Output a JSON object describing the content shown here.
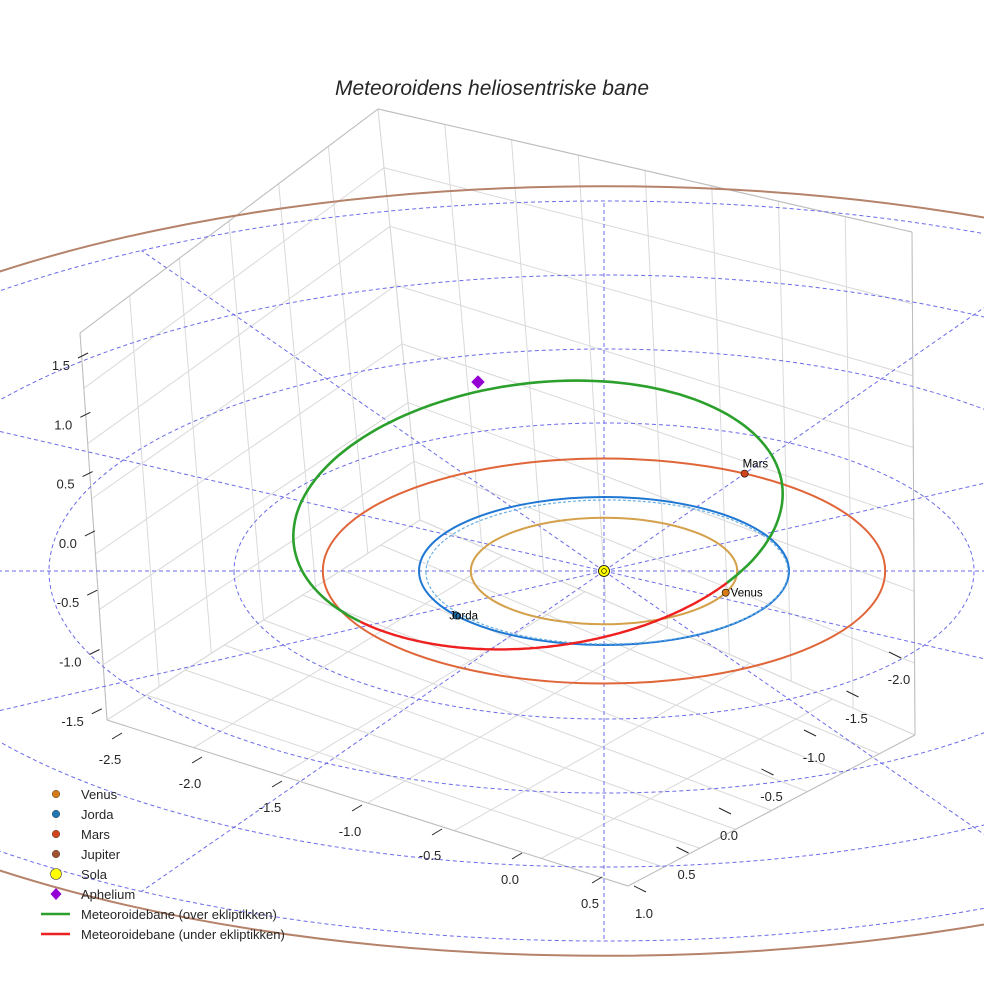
{
  "chart_data": {
    "type": "3d-orbit",
    "title": "Meteoroidens heliosentriske bane",
    "axes": {
      "x_ticks": [
        "-2.5",
        "-2.0",
        "-1.5",
        "-1.0",
        "-0.5",
        "0.0",
        "0.5"
      ],
      "y_ticks": [
        "1.0",
        "0.5",
        "0.0",
        "-0.5",
        "-1.0",
        "-1.5",
        "-2.0"
      ],
      "z_ticks": [
        "1.5",
        "1.0",
        "0.5",
        "0.0",
        "-0.5",
        "-1.0",
        "-1.5"
      ],
      "z_range": [
        -1.5,
        1.5
      ]
    },
    "orbits": [
      {
        "name": "Venus",
        "a_au": 0.72,
        "color": "#d4a04a"
      },
      {
        "name": "Jorda",
        "a_au": 1.0,
        "color": "#1f77d4"
      },
      {
        "name": "Mars",
        "a_au": 1.52,
        "color": "#e0663a"
      },
      {
        "name": "Jupiter",
        "a_au": 5.2,
        "color": "#b5826a"
      }
    ],
    "reference_circles_au": [
      1,
      2,
      3,
      4,
      5
    ],
    "bodies": [
      {
        "name": "Venus",
        "label": "Venus",
        "marker": "circle",
        "color": "#d67a16",
        "r_au": 0.72,
        "angle_deg": -24
      },
      {
        "name": "Jorda",
        "label": "Jorda",
        "marker": "circle",
        "color": "#1f77b4",
        "r_au": 1.0,
        "angle_deg": -143
      },
      {
        "name": "Mars",
        "label": "Mars",
        "marker": "circle",
        "color": "#d1441c",
        "r_au": 1.52,
        "angle_deg": 60
      },
      {
        "name": "Sola",
        "label": "",
        "marker": "circle",
        "color": "#ffff00",
        "r_au": 0,
        "angle_deg": 0
      },
      {
        "name": "Aphelium",
        "label": "",
        "marker": "diamond",
        "color": "#9400d3"
      }
    ],
    "meteoroid": {
      "above": {
        "name": "Meteoroidebane (over ekliptikken)",
        "color": "#2ca02c"
      },
      "below": {
        "name": "Meteoroidebane (under ekliptikken)",
        "color": "#ee2020"
      }
    },
    "legend": [
      {
        "label": "Venus",
        "type": "dot",
        "color": "#d67a16"
      },
      {
        "label": "Jorda",
        "type": "dot",
        "color": "#1f77b4"
      },
      {
        "label": "Mars",
        "type": "dot",
        "color": "#d1441c"
      },
      {
        "label": "Jupiter",
        "type": "dot",
        "color": "#a0522d"
      },
      {
        "label": "Sola",
        "type": "sun",
        "color": "#ffff00"
      },
      {
        "label": "Aphelium",
        "type": "diamond",
        "color": "#9400d3"
      },
      {
        "label": "Meteoroidebane (over ekliptikken)",
        "type": "line",
        "color": "#2ca02c"
      },
      {
        "label": "Meteoroidebane (under ekliptikken)",
        "type": "line",
        "color": "#ee2020"
      }
    ]
  }
}
